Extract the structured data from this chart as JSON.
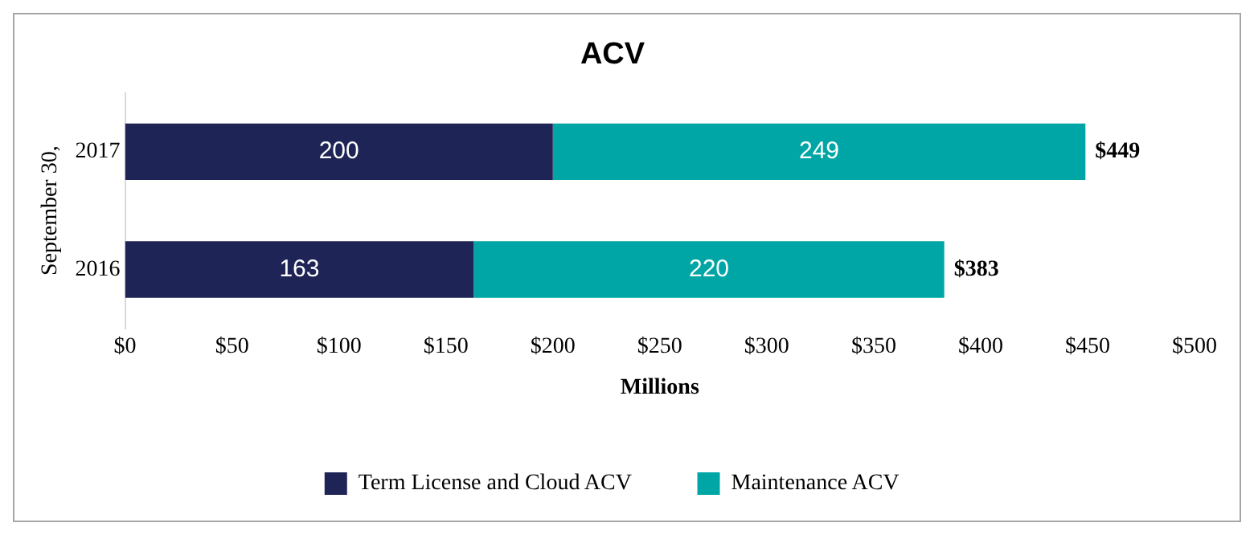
{
  "chart_data": {
    "type": "bar",
    "orientation": "horizontal",
    "stacked": true,
    "title": "ACV",
    "xlabel": "Millions",
    "ylabel": "September 30,",
    "categories": [
      "2017",
      "2016"
    ],
    "series": [
      {
        "name": "Term License and Cloud ACV",
        "color": "#1f2456",
        "values": [
          200,
          163
        ]
      },
      {
        "name": "Maintenance ACV",
        "color": "#00a6a6",
        "values": [
          249,
          220
        ]
      }
    ],
    "xlim": [
      0,
      500
    ],
    "xticks": [
      {
        "value": 0,
        "label": "$0"
      },
      {
        "value": 50,
        "label": "$50"
      },
      {
        "value": 100,
        "label": "$100"
      },
      {
        "value": 150,
        "label": "$150"
      },
      {
        "value": 200,
        "label": "$200"
      },
      {
        "value": 250,
        "label": "$250"
      },
      {
        "value": 300,
        "label": "$300"
      },
      {
        "value": 350,
        "label": "$350"
      },
      {
        "value": 400,
        "label": "$400"
      },
      {
        "value": 450,
        "label": "$450"
      },
      {
        "value": 500,
        "label": "$500"
      }
    ],
    "data_labels": true,
    "totals": [
      "$449",
      "$383"
    ],
    "grid": false,
    "legend": "bottom"
  }
}
